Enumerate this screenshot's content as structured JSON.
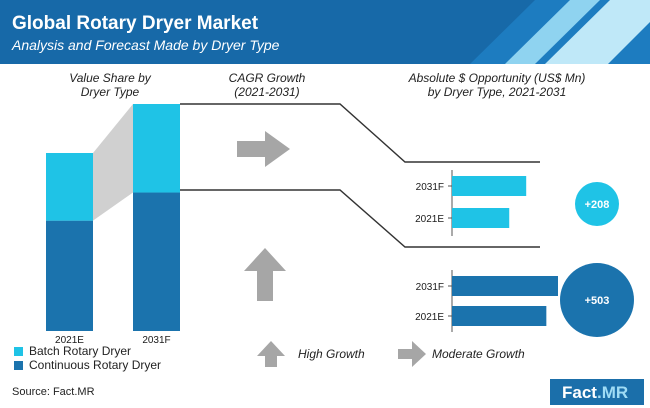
{
  "header": {
    "title": "Global Rotary Dryer Market",
    "subtitle": "Analysis and Forecast Made by Dryer Type"
  },
  "headings": {
    "share_line1": "Value Share by",
    "share_line2": "Dryer Type",
    "cagr_line1": "CAGR Growth",
    "cagr_line2": "(2021-2031)",
    "opportunity_line1": "Absolute $ Opportunity (US$ Mn)",
    "opportunity_line2": "by Dryer Type, 2021-2031"
  },
  "legend": {
    "batch": "Batch Rotary Dryer",
    "continuous": "Continuous Rotary Dryer"
  },
  "growth_legend": {
    "high": "High Growth",
    "moderate": "Moderate Growth"
  },
  "source": "Source: Fact.MR",
  "brand": {
    "name": "Fact",
    "suffix": ".MR"
  },
  "colors": {
    "header_bg": "#1769a8",
    "batch": "#1fc3e6",
    "continuous": "#1b73ad",
    "arrow_gray": "#a6a6a6",
    "connector_gray": "#d0d0d0",
    "logo_bg": "#1b6faa"
  },
  "chart_data": [
    {
      "type": "bar",
      "subtype": "stacked-100",
      "title": "Value Share by Dryer Type",
      "categories": [
        "2021E",
        "2031F"
      ],
      "series": [
        {
          "name": "Continuous Rotary Dryer",
          "values": [
            62,
            61
          ]
        },
        {
          "name": "Batch Rotary Dryer",
          "values": [
            38,
            39
          ]
        }
      ]
    },
    {
      "type": "bar",
      "orientation": "horizontal",
      "title": "Absolute $ Opportunity (US$ Mn) by Dryer Type, 2021-2031",
      "panels": [
        {
          "series": "Batch Rotary Dryer",
          "categories": [
            "2031F",
            "2021E"
          ],
          "values": [
            0.7,
            0.54
          ],
          "value_note": "relative bar length (not printed)",
          "absolute_opportunity": "+208",
          "cagr_arrow": "right"
        },
        {
          "series": "Continuous Rotary Dryer",
          "categories": [
            "2031F",
            "2021E"
          ],
          "values": [
            1.0,
            0.89
          ],
          "value_note": "relative bar length (not printed)",
          "absolute_opportunity": "+503",
          "cagr_arrow": "up"
        }
      ]
    }
  ]
}
